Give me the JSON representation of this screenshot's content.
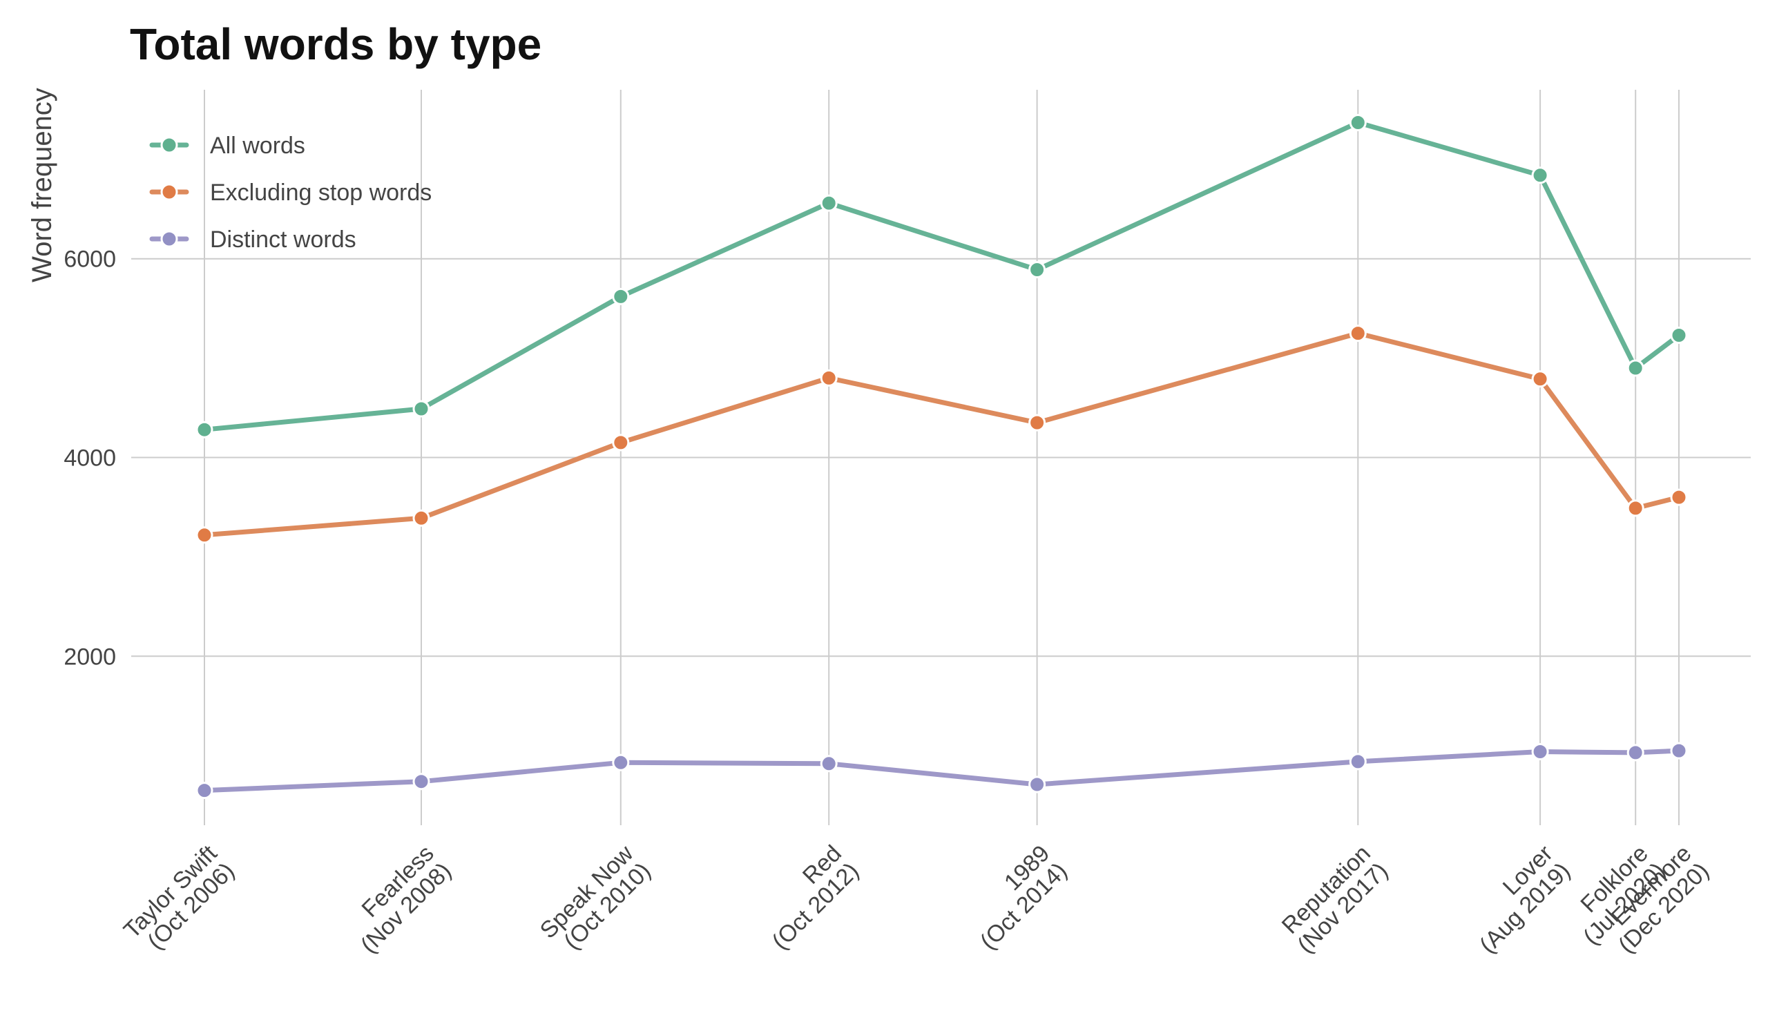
{
  "chart_data": {
    "type": "line",
    "title": "Total words by type",
    "xlabel": "",
    "ylabel": "Word frequency",
    "categories": [
      [
        "Taylor Swift",
        "(Oct 2006)"
      ],
      [
        "Fearless",
        "(Nov 2008)"
      ],
      [
        "Speak Now",
        "(Oct 2010)"
      ],
      [
        "Red",
        "(Oct 2012)"
      ],
      [
        "1989",
        "(Oct 2014)"
      ],
      [
        "Reputation",
        "(Nov 2017)"
      ],
      [
        "Lover",
        "(Aug 2019)"
      ],
      [
        "Folklore",
        "(Jul 2020)"
      ],
      [
        "Evermore",
        "(Dec 2020)"
      ]
    ],
    "x_dates": [
      "2006-10",
      "2008-11",
      "2010-10",
      "2012-10",
      "2014-10",
      "2017-11",
      "2019-08",
      "2020-07",
      "2020-12"
    ],
    "y_ticks": [
      2000,
      4000,
      6000
    ],
    "ylim": [
      300,
      7700
    ],
    "grid": "on",
    "legend_position": "top-left",
    "series": [
      {
        "name": "All words",
        "color": "#66b396",
        "marker_color": "#5fb08f",
        "values": [
          4280,
          4490,
          5620,
          6560,
          5890,
          7370,
          6840,
          4900,
          5230
        ]
      },
      {
        "name": "Excluding stop words",
        "color": "#dd8a5c",
        "marker_color": "#e07b45",
        "values": [
          3220,
          3390,
          4150,
          4800,
          4350,
          5250,
          4790,
          3490,
          3600
        ]
      },
      {
        "name": "Distinct words",
        "color": "#9e98c8",
        "marker_color": "#9290c4",
        "values": [
          650,
          740,
          930,
          920,
          710,
          940,
          1040,
          1030,
          1050
        ]
      }
    ]
  }
}
